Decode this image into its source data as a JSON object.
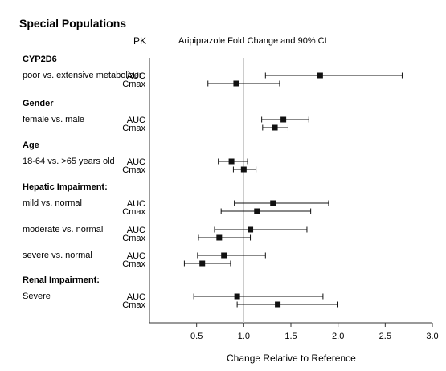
{
  "chart_data": {
    "type": "forest",
    "title": "Special Populations",
    "pk_header": "PK",
    "plot_title": "Aripiprazole Fold Change and 90% CI",
    "xlabel": "Change Relative to Reference",
    "xlim": [
      0.0,
      3.0
    ],
    "xticks": [
      "0.5",
      "1.0",
      "1.5",
      "2.0",
      "2.5",
      "3.0"
    ],
    "reference_line": 1.0,
    "groups": [
      {
        "heading": "CYP2D6",
        "subgroups": [
          {
            "label": "poor vs. extensive metabolizer",
            "rows": [
              {
                "pk": "AUC",
                "estimate": 1.81,
                "lower": 1.23,
                "upper": 2.68
              },
              {
                "pk": "Cmax",
                "estimate": 0.92,
                "lower": 0.62,
                "upper": 1.38
              }
            ]
          }
        ]
      },
      {
        "heading": "Gender",
        "subgroups": [
          {
            "label": "female vs. male",
            "rows": [
              {
                "pk": "AUC",
                "estimate": 1.42,
                "lower": 1.19,
                "upper": 1.69
              },
              {
                "pk": "Cmax",
                "estimate": 1.33,
                "lower": 1.2,
                "upper": 1.47
              }
            ]
          }
        ]
      },
      {
        "heading": "Age",
        "subgroups": [
          {
            "label": "18-64 vs. >65 years old",
            "rows": [
              {
                "pk": "AUC",
                "estimate": 0.87,
                "lower": 0.73,
                "upper": 1.04
              },
              {
                "pk": "Cmax",
                "estimate": 1.0,
                "lower": 0.89,
                "upper": 1.13
              }
            ]
          }
        ]
      },
      {
        "heading": "Hepatic Impairment:",
        "subgroups": [
          {
            "label": "mild vs. normal",
            "rows": [
              {
                "pk": "AUC",
                "estimate": 1.31,
                "lower": 0.9,
                "upper": 1.9
              },
              {
                "pk": "Cmax",
                "estimate": 1.14,
                "lower": 0.76,
                "upper": 1.71
              }
            ]
          },
          {
            "label": "moderate vs. normal",
            "rows": [
              {
                "pk": "AUC",
                "estimate": 1.07,
                "lower": 0.69,
                "upper": 1.67
              },
              {
                "pk": "Cmax",
                "estimate": 0.74,
                "lower": 0.52,
                "upper": 1.07
              }
            ]
          },
          {
            "label": "severe vs. normal",
            "rows": [
              {
                "pk": "AUC",
                "estimate": 0.79,
                "lower": 0.51,
                "upper": 1.23
              },
              {
                "pk": "Cmax",
                "estimate": 0.56,
                "lower": 0.37,
                "upper": 0.86
              }
            ]
          }
        ]
      },
      {
        "heading": "Renal Impairment:",
        "subgroups": [
          {
            "label": "Severe",
            "rows": [
              {
                "pk": "AUC",
                "estimate": 0.93,
                "lower": 0.47,
                "upper": 1.84
              },
              {
                "pk": "Cmax",
                "estimate": 1.36,
                "lower": 0.93,
                "upper": 1.99
              }
            ]
          }
        ]
      }
    ]
  }
}
